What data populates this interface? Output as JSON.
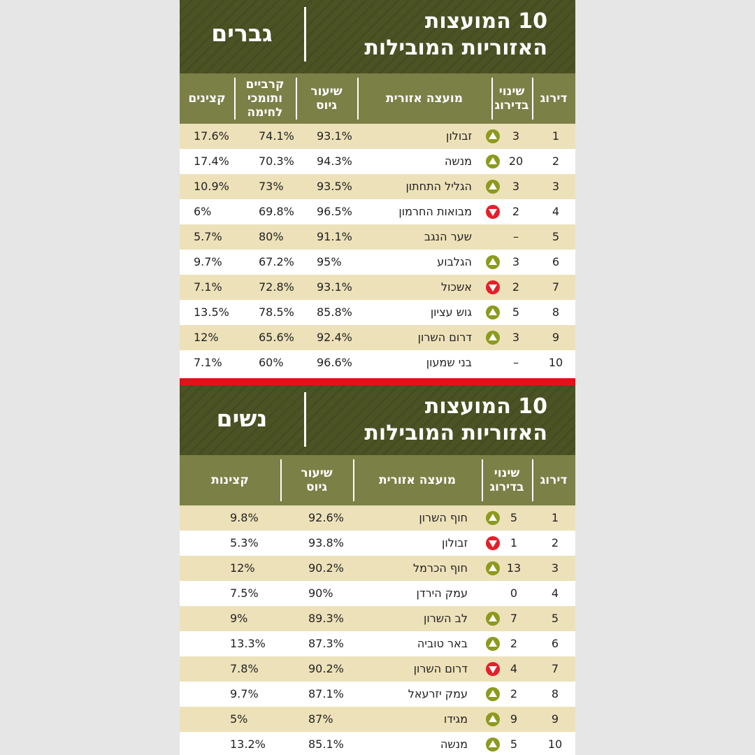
{
  "colors": {
    "header_bg": "#4b5224",
    "column_header_bg": "#7b8047",
    "row_highlight": "#ede1b9",
    "separator": "#e2121b",
    "arrow_up": "#8c9a1e",
    "arrow_down": "#e3202a"
  },
  "men": {
    "title_line1": "10 המועצות",
    "title_line2": "האזוריות המובילות",
    "gender": "גברים",
    "headers": {
      "rank": "דירוג",
      "change_line1": "שינוי",
      "change_line2": "בדירוג",
      "council": "מועצה אזורית",
      "draft_line1": "שיעור",
      "draft_line2": "גיוס",
      "combat_line1": "קרביים",
      "combat_line2": "ותומכי",
      "combat_line3": "לחימה",
      "officers": "קצינים"
    },
    "rows": [
      {
        "rank": "1",
        "change": "3",
        "arrow": "up-arrow-icon",
        "council": "זבולון",
        "draft": "93.1%",
        "combat": "74.1%",
        "officers": "17.6%"
      },
      {
        "rank": "2",
        "change": "20",
        "arrow": "up-arrow-icon",
        "council": "מנשה",
        "draft": "94.3%",
        "combat": "70.3%",
        "officers": "17.4%"
      },
      {
        "rank": "3",
        "change": "3",
        "arrow": "up-arrow-icon",
        "council": "הגליל התחתון",
        "draft": "93.5%",
        "combat": "73%",
        "officers": "10.9%"
      },
      {
        "rank": "4",
        "change": "2",
        "arrow": "down-arrow-icon",
        "council": "מבואות החרמון",
        "draft": "96.5%",
        "combat": "69.8%",
        "officers": "6%"
      },
      {
        "rank": "5",
        "change": "–",
        "arrow": "",
        "council": "שער הנגב",
        "draft": "91.1%",
        "combat": "80%",
        "officers": "5.7%"
      },
      {
        "rank": "6",
        "change": "3",
        "arrow": "up-arrow-icon",
        "council": "הגלבוע",
        "draft": "95%",
        "combat": "67.2%",
        "officers": "9.7%"
      },
      {
        "rank": "7",
        "change": "2",
        "arrow": "down-arrow-icon",
        "council": "אשכול",
        "draft": "93.1%",
        "combat": "72.8%",
        "officers": "7.1%"
      },
      {
        "rank": "8",
        "change": "5",
        "arrow": "up-arrow-icon",
        "council": "גוש עציון",
        "draft": "85.8%",
        "combat": "78.5%",
        "officers": "13.5%"
      },
      {
        "rank": "9",
        "change": "3",
        "arrow": "up-arrow-icon",
        "council": "דרום השרון",
        "draft": "92.4%",
        "combat": "65.6%",
        "officers": "12%"
      },
      {
        "rank": "10",
        "change": "–",
        "arrow": "",
        "council": "בני שמעון",
        "draft": "96.6%",
        "combat": "60%",
        "officers": "7.1%"
      }
    ]
  },
  "women": {
    "title_line1": "10 המועצות",
    "title_line2": "האזוריות המובילות",
    "gender": "נשים",
    "headers": {
      "rank": "דירוג",
      "change_line1": "שינוי",
      "change_line2": "בדירוג",
      "council": "מועצה אזורית",
      "draft_line1": "שיעור",
      "draft_line2": "גיוס",
      "officers": "קצינות"
    },
    "rows": [
      {
        "rank": "1",
        "change": "5",
        "arrow": "up-arrow-icon",
        "council": "חוף השרון",
        "draft": "92.6%",
        "officers": "9.8%"
      },
      {
        "rank": "2",
        "change": "1",
        "arrow": "down-arrow-icon",
        "council": "זבולון",
        "draft": "93.8%",
        "officers": "5.3%"
      },
      {
        "rank": "3",
        "change": "13",
        "arrow": "up-arrow-icon",
        "council": "חוף הכרמל",
        "draft": "90.2%",
        "officers": "12%"
      },
      {
        "rank": "4",
        "change": "0",
        "arrow": "",
        "council": "עמק הירדן",
        "draft": "90%",
        "officers": "7.5%"
      },
      {
        "rank": "5",
        "change": "7",
        "arrow": "up-arrow-icon",
        "council": "לב השרון",
        "draft": "89.3%",
        "officers": "9%"
      },
      {
        "rank": "6",
        "change": "2",
        "arrow": "up-arrow-icon",
        "council": "באר טוביה",
        "draft": "87.3%",
        "officers": "13.3%"
      },
      {
        "rank": "7",
        "change": "4",
        "arrow": "down-arrow-icon",
        "council": "דרום השרון",
        "draft": "90.2%",
        "officers": "7.8%"
      },
      {
        "rank": "8",
        "change": "2",
        "arrow": "up-arrow-icon",
        "council": "עמק יזרעאל",
        "draft": "87.1%",
        "officers": "9.7%"
      },
      {
        "rank": "9",
        "change": "9",
        "arrow": "up-arrow-icon",
        "council": "מגידו",
        "draft": "87%",
        "officers": "5%"
      },
      {
        "rank": "10",
        "change": "5",
        "arrow": "up-arrow-icon",
        "council": "מנשה",
        "draft": "85.1%",
        "officers": "13.2%"
      }
    ]
  }
}
